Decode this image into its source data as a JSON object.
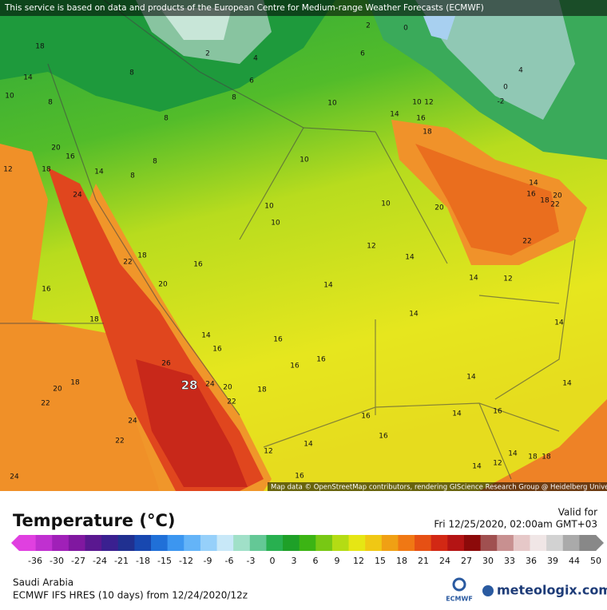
{
  "banner": "This service is based on data and products of the European Centre for Medium-range Weather Forecasts (ECMWF)",
  "attribution": "Map data © OpenStreetMap contributors, rendering GIScience Research Group @ Heidelberg University",
  "map": {
    "labels": [
      "18",
      "14",
      "10",
      "8",
      "20",
      "12",
      "18",
      "16",
      "24",
      "14",
      "8",
      "2",
      "4",
      "6",
      "8",
      "8",
      "8",
      "8",
      "10",
      "10",
      "10",
      "10",
      "10",
      "6",
      "2",
      "0",
      "4",
      "0",
      "-2",
      "10",
      "12",
      "16",
      "18",
      "14",
      "20",
      "22",
      "14",
      "16",
      "18",
      "20",
      "22",
      "14",
      "12",
      "14",
      "12",
      "16",
      "20",
      "22",
      "18",
      "16",
      "18",
      "14",
      "16",
      "16",
      "16",
      "16",
      "14",
      "14",
      "14",
      "14",
      "26",
      "28",
      "24",
      "20",
      "22",
      "18",
      "20",
      "18",
      "22",
      "24",
      "22",
      "24",
      "16",
      "16",
      "14",
      "16",
      "14",
      "12",
      "14",
      "18",
      "18",
      "12",
      "14",
      "16",
      "14"
    ]
  },
  "legend": {
    "title": "Temperature (°C)",
    "valid_label": "Valid for",
    "valid_time": "Fri 12/25/2020, 02:00am GMT+03",
    "ticks": [
      "-36",
      "-30",
      "-27",
      "-24",
      "-21",
      "-18",
      "-15",
      "-12",
      "-9",
      "-6",
      "-3",
      "0",
      "3",
      "6",
      "9",
      "12",
      "15",
      "18",
      "21",
      "24",
      "27",
      "30",
      "33",
      "36",
      "39",
      "44",
      "50"
    ],
    "colors": [
      "#e040e0",
      "#c030d0",
      "#a020b8",
      "#8018a0",
      "#5a1890",
      "#3a2090",
      "#203090",
      "#1848b0",
      "#2070d8",
      "#3c96f0",
      "#64b4f8",
      "#96d0fa",
      "#c8e8f8",
      "#a0e0c8",
      "#64c896",
      "#28b050",
      "#1ea028",
      "#3cb414",
      "#78c814",
      "#b4dc14",
      "#e6e614",
      "#f0c814",
      "#f0a014",
      "#f07814",
      "#e65014",
      "#d22814",
      "#b41414",
      "#8c0a0a",
      "#a05050",
      "#c89090",
      "#e6c8c8",
      "#f0e6e6",
      "#d2d2d2",
      "#aaaaaa",
      "#888888"
    ],
    "region": "Saudi Arabia",
    "model": "ECMWF IFS HRES (10 days) from 12/24/2020/12z",
    "ecmwf_logo": "ECMWF",
    "brand": "meteologix.com"
  }
}
